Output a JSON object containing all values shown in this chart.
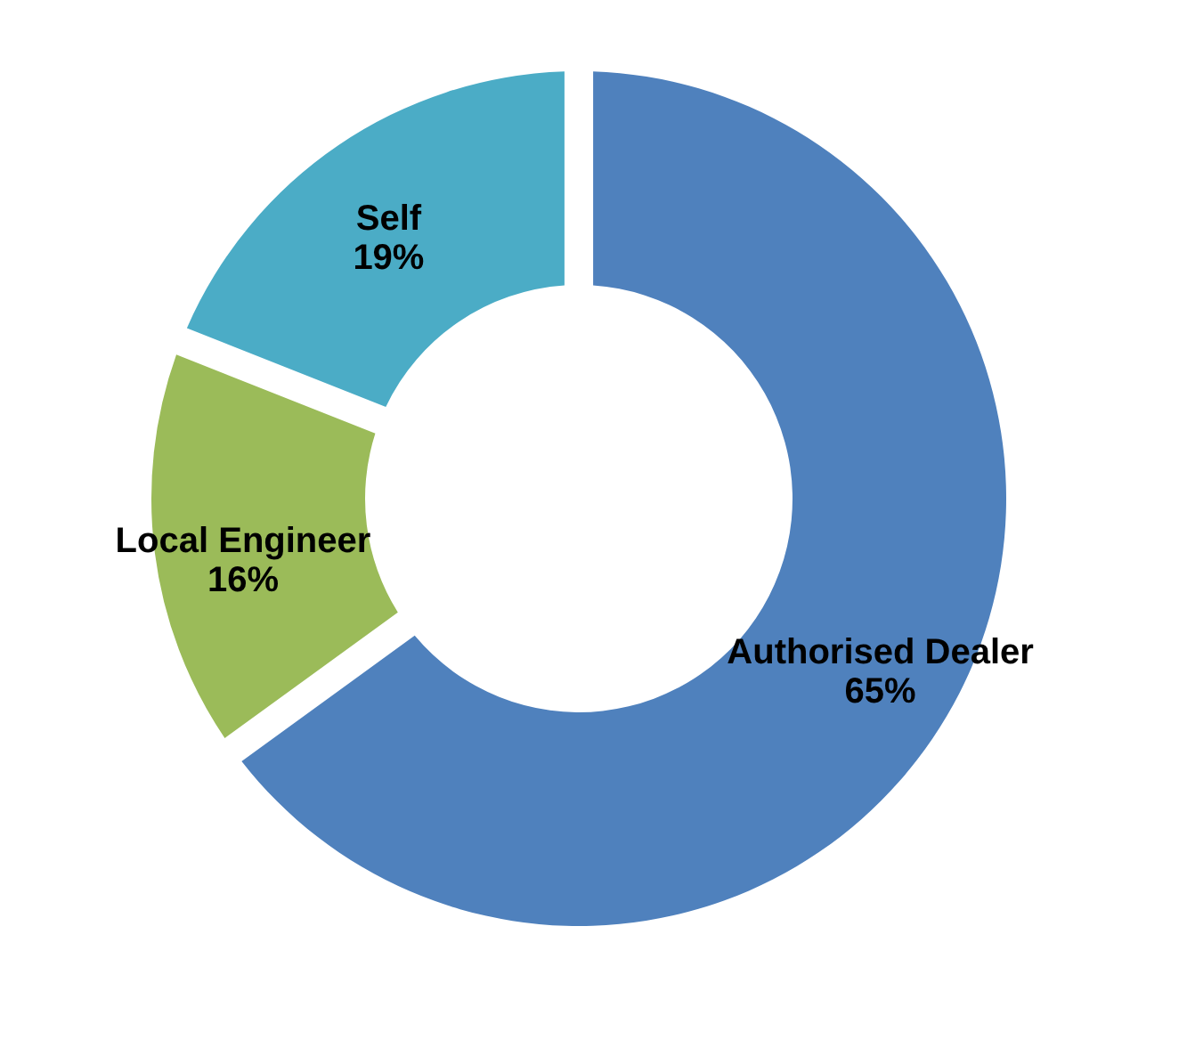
{
  "chart_data": {
    "type": "donut",
    "categories": [
      "Authorised Dealer",
      "Local Engineer",
      "Self"
    ],
    "values": [
      65,
      16,
      19
    ],
    "colors": [
      "#4f81bd",
      "#9bbb59",
      "#4bacc6"
    ],
    "value_labels": [
      "65%",
      "16%",
      "19%"
    ],
    "legend": false
  }
}
